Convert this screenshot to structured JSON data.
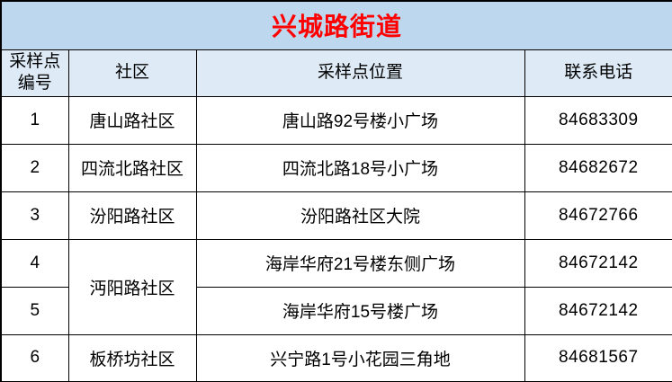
{
  "title": "兴城路街道",
  "colors": {
    "title_bg": "#BDD7EE",
    "header_bg": "#DEEBF7",
    "row_bg": "#FFFFFF",
    "border": "#000000",
    "title_text": "#FF0000",
    "body_text": "#000000"
  },
  "table": {
    "headers": {
      "number_line1": "采样点",
      "number_line2": "编号",
      "community": "社区",
      "location": "采样点位置",
      "phone": "联系电话"
    },
    "merged_community": "沔阳路社区",
    "rows": [
      {
        "id": "1",
        "community": "唐山路社区",
        "location": "唐山路92号楼小广场",
        "phone": "84683309"
      },
      {
        "id": "2",
        "community": "四流北路社区",
        "location": "四流北路18号小广场",
        "phone": "84682672"
      },
      {
        "id": "3",
        "community": "汾阳路社区",
        "location": "汾阳路社区大院",
        "phone": "84672766"
      },
      {
        "id": "4",
        "community": "沔阳路社区",
        "location": "海岸华府21号楼东侧广场",
        "phone": "84672142"
      },
      {
        "id": "5",
        "community": "沔阳路社区",
        "location": "海岸华府15号楼广场",
        "phone": "84672142"
      },
      {
        "id": "6",
        "community": "板桥坊社区",
        "location": "兴宁路1号小花园三角地",
        "phone": "84681567"
      }
    ]
  }
}
